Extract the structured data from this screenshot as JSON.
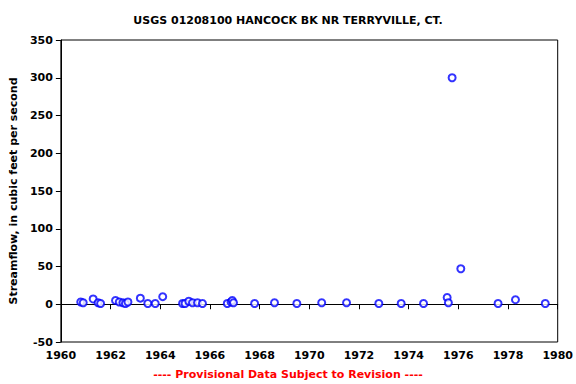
{
  "chart_data": {
    "type": "scatter",
    "title": "USGS 01208100 HANCOCK BK NR TERRYVILLE, CT.",
    "y_label": "Streamflow, in cubic feet per second",
    "annotations": [
      "---- Provisional Data Subject to Revision ----"
    ],
    "x": [
      1960.8,
      1960.9,
      1961.3,
      1961.5,
      1961.6,
      1962.2,
      1962.35,
      1962.5,
      1962.6,
      1962.7,
      1963.2,
      1963.5,
      1963.8,
      1964.1,
      1964.9,
      1965.0,
      1965.15,
      1965.3,
      1965.5,
      1965.7,
      1966.7,
      1966.85,
      1966.9,
      1966.95,
      1967.8,
      1968.6,
      1969.5,
      1970.5,
      1971.5,
      1972.8,
      1973.7,
      1974.6,
      1975.55,
      1975.6,
      1975.75,
      1976.1,
      1977.6,
      1978.3,
      1979.5
    ],
    "values": [
      3,
      2,
      7,
      2,
      1,
      5,
      3,
      2,
      1,
      3,
      8,
      1,
      1,
      10,
      1,
      1,
      4,
      2,
      2,
      1,
      1,
      3,
      5,
      2,
      1,
      2,
      1,
      2,
      2,
      1,
      1,
      1,
      9,
      2,
      300,
      47,
      1,
      6,
      1
    ],
    "color": "#0000ff",
    "marker": "open_circle",
    "xlim": [
      1960,
      1980
    ],
    "xticks": [
      1960,
      1962,
      1964,
      1966,
      1968,
      1970,
      1972,
      1974,
      1976,
      1978,
      1980
    ],
    "ylim": [
      -50,
      350
    ],
    "yticks": [
      -50,
      0,
      50,
      100,
      150,
      200,
      250,
      300,
      350
    ],
    "grid": false
  }
}
